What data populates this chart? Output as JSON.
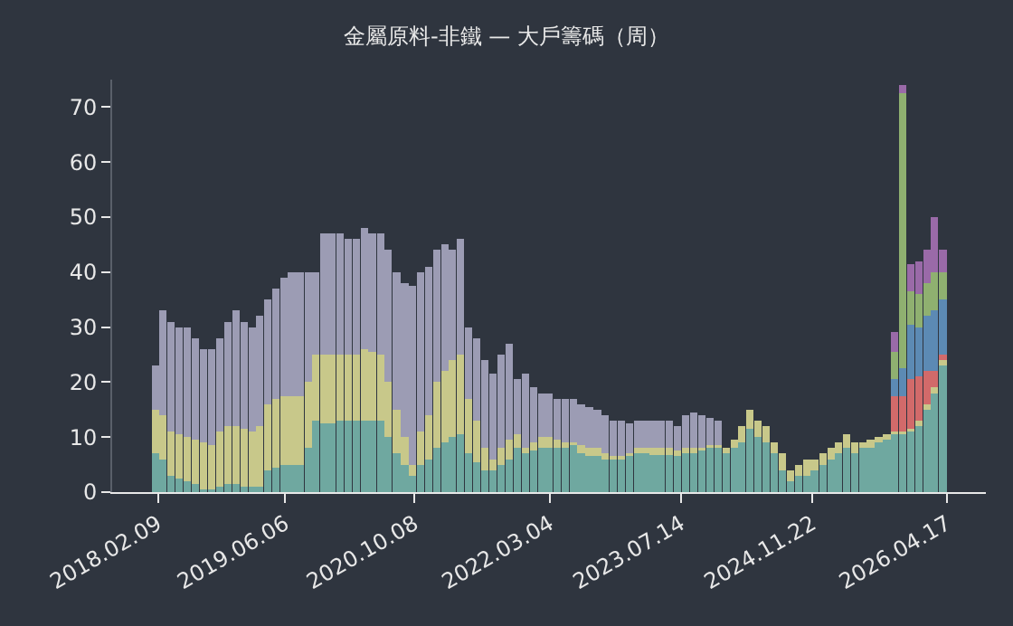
{
  "chart_data": {
    "type": "bar",
    "title": "金屬原料-非鐵 — 大戶籌碼（周）",
    "stacked": true,
    "x": [
      "2018-02",
      "2018-03",
      "2018-04",
      "2018-05",
      "2018-06",
      "2018-07",
      "2018-08",
      "2018-09",
      "2018-10",
      "2018-11",
      "2018-12",
      "2019-01",
      "2019-02",
      "2019-03",
      "2019-04",
      "2019-05",
      "2019-06",
      "2019-07",
      "2019-08",
      "2019-09",
      "2019-10",
      "2019-11",
      "2019-12",
      "2020-01",
      "2020-02",
      "2020-03",
      "2020-04",
      "2020-05",
      "2020-06",
      "2020-07",
      "2020-08",
      "2020-09",
      "2020-10",
      "2020-11",
      "2020-12",
      "2021-01",
      "2021-02",
      "2021-03",
      "2021-04",
      "2021-05",
      "2021-06",
      "2021-07",
      "2021-08",
      "2021-09",
      "2021-10",
      "2021-11",
      "2021-12",
      "2022-01",
      "2022-02",
      "2022-03",
      "2022-04",
      "2022-05",
      "2022-06",
      "2022-07",
      "2022-08",
      "2022-09",
      "2022-10",
      "2022-11",
      "2022-12",
      "2023-01",
      "2023-02",
      "2023-03",
      "2023-04",
      "2023-05",
      "2023-06",
      "2023-07",
      "2023-08",
      "2023-09",
      "2023-10",
      "2023-11",
      "2023-12",
      "2024-01",
      "2024-02",
      "2024-03",
      "2024-04",
      "2024-05",
      "2024-06",
      "2024-07",
      "2024-08",
      "2024-09",
      "2024-10",
      "2024-11",
      "2024-12",
      "2025-01",
      "2025-02",
      "2025-03",
      "2025-04",
      "2025-05",
      "2025-06",
      "2025-07",
      "2025-08",
      "2025-09",
      "2025-10",
      "2025-11",
      "2025-12",
      "2026-01",
      "2026-02",
      "2026-03",
      "2026-04"
    ],
    "xlim": [
      "2017-08-20",
      "2026-09-11"
    ],
    "xticks": [
      {
        "value": "2018-02-09",
        "label": "2018.02.09"
      },
      {
        "value": "2019-06-06",
        "label": "2019.06.06"
      },
      {
        "value": "2020-10-08",
        "label": "2020.10.08"
      },
      {
        "value": "2022-03-04",
        "label": "2022.03.04"
      },
      {
        "value": "2023-07-14",
        "label": "2023.07.14"
      },
      {
        "value": "2024-11-22",
        "label": "2024.11.22"
      },
      {
        "value": "2026-04-17",
        "label": "2026.04.17"
      }
    ],
    "ylim": [
      0,
      75
    ],
    "yticks": [
      0,
      10,
      20,
      30,
      40,
      50,
      60,
      70
    ],
    "series": [
      {
        "color": "#6fa8a0",
        "values": [
          7,
          6,
          3,
          2.5,
          2,
          1.5,
          0.5,
          0.5,
          1,
          1.5,
          1.5,
          1,
          1,
          1,
          4,
          4.5,
          5,
          5,
          5,
          8,
          13,
          12.5,
          12.5,
          13,
          13,
          13,
          13,
          13,
          13,
          10,
          7,
          5,
          3,
          5,
          6,
          8,
          9,
          10,
          10.5,
          7,
          5.5,
          4,
          4,
          5,
          6,
          8,
          7,
          7.5,
          8,
          8,
          8,
          8,
          8.5,
          7,
          6.5,
          6.5,
          6,
          6,
          6,
          6.5,
          7,
          7,
          6.7,
          6.7,
          6.7,
          6.5,
          7,
          7,
          7.5,
          8,
          8,
          7,
          8,
          9,
          11.5,
          10,
          9,
          7,
          4,
          2,
          3,
          3,
          4,
          5,
          6,
          7,
          8,
          7,
          8,
          8,
          9,
          9.5,
          10.5,
          10.5,
          11,
          12,
          15,
          18,
          23
        ]
      },
      {
        "color": "#c8c88a",
        "values": [
          8,
          8,
          8,
          8,
          8,
          8,
          8.5,
          8,
          10,
          10.5,
          10.5,
          10.5,
          10,
          11,
          12,
          12.5,
          12.5,
          12.5,
          12.5,
          12,
          12,
          12.5,
          12.5,
          12,
          12,
          12,
          13,
          12.5,
          12,
          10,
          8,
          5,
          2,
          6,
          8,
          12,
          13,
          14,
          14.5,
          10,
          7.5,
          4,
          2,
          3,
          3.5,
          2.5,
          1,
          1.5,
          2,
          2,
          1.5,
          1,
          0.5,
          1.5,
          1.5,
          1.5,
          1,
          0.5,
          0.5,
          0.5,
          1,
          1,
          1.3,
          1.3,
          1.3,
          1,
          1,
          1,
          0.5,
          0.5,
          0.5,
          1,
          1.5,
          3,
          3.5,
          3,
          3,
          2,
          3,
          2,
          2,
          3,
          2,
          2,
          2,
          2,
          2.5,
          2,
          1,
          1.5,
          1,
          1,
          0.5,
          0.5,
          0.5,
          1,
          1,
          1,
          1
        ]
      },
      {
        "color": "#9c9cb4",
        "values": [
          8,
          19,
          20,
          19.5,
          20,
          18.5,
          17,
          17.5,
          17,
          19,
          21,
          19.5,
          19,
          20,
          19,
          20,
          21.5,
          22.5,
          22.5,
          20,
          15,
          22,
          22,
          22,
          21,
          21,
          22,
          21.5,
          22,
          24,
          25,
          28,
          32.5,
          29,
          27,
          24,
          23,
          20,
          21,
          13,
          15,
          16,
          15.5,
          17,
          17.5,
          10,
          13.5,
          10,
          8,
          8,
          7.5,
          8,
          8,
          7.5,
          7.5,
          7,
          7,
          6.5,
          6.5,
          5.5,
          5,
          5,
          5,
          5,
          5,
          4.5,
          6,
          6.5,
          6,
          5,
          4.5,
          0,
          0,
          0,
          0,
          0,
          0,
          0,
          0,
          0,
          0,
          0,
          0,
          0,
          0,
          0,
          0,
          0,
          0,
          0,
          0,
          0,
          0,
          0,
          0,
          0,
          0,
          0,
          0
        ]
      },
      {
        "color": "#d26a6a",
        "values": [
          0,
          0,
          0,
          0,
          0,
          0,
          0,
          0,
          0,
          0,
          0,
          0,
          0,
          0,
          0,
          0,
          0,
          0,
          0,
          0,
          0,
          0,
          0,
          0,
          0,
          0,
          0,
          0,
          0,
          0,
          0,
          0,
          0,
          0,
          0,
          0,
          0,
          0,
          0,
          0,
          0,
          0,
          0,
          0,
          0,
          0,
          0,
          0,
          0,
          0,
          0,
          0,
          0,
          0,
          0,
          0,
          0,
          0,
          0,
          0,
          0,
          0,
          0,
          0,
          0,
          0,
          0,
          0,
          0,
          0,
          0,
          0,
          0,
          0,
          0,
          0,
          0,
          0,
          0,
          0,
          0,
          0,
          0,
          0,
          0,
          0,
          0,
          0,
          0,
          0,
          0,
          0,
          6.5,
          6.5,
          9,
          8,
          6,
          3,
          1
        ]
      },
      {
        "color": "#5c8ab4",
        "values": [
          0,
          0,
          0,
          0,
          0,
          0,
          0,
          0,
          0,
          0,
          0,
          0,
          0,
          0,
          0,
          0,
          0,
          0,
          0,
          0,
          0,
          0,
          0,
          0,
          0,
          0,
          0,
          0,
          0,
          0,
          0,
          0,
          0,
          0,
          0,
          0,
          0,
          0,
          0,
          0,
          0,
          0,
          0,
          0,
          0,
          0,
          0,
          0,
          0,
          0,
          0,
          0,
          0,
          0,
          0,
          0,
          0,
          0,
          0,
          0,
          0,
          0,
          0,
          0,
          0,
          0,
          0,
          0,
          0,
          0,
          0,
          0,
          0,
          0,
          0,
          0,
          0,
          0,
          0,
          0,
          0,
          0,
          0,
          0,
          0,
          0,
          0,
          0,
          0,
          0,
          0,
          0,
          3,
          5,
          10,
          9,
          10,
          11,
          10
        ]
      },
      {
        "color": "#8fb070",
        "values": [
          0,
          0,
          0,
          0,
          0,
          0,
          0,
          0,
          0,
          0,
          0,
          0,
          0,
          0,
          0,
          0,
          0,
          0,
          0,
          0,
          0,
          0,
          0,
          0,
          0,
          0,
          0,
          0,
          0,
          0,
          0,
          0,
          0,
          0,
          0,
          0,
          0,
          0,
          0,
          0,
          0,
          0,
          0,
          0,
          0,
          0,
          0,
          0,
          0,
          0,
          0,
          0,
          0,
          0,
          0,
          0,
          0,
          0,
          0,
          0,
          0,
          0,
          0,
          0,
          0,
          0,
          0,
          0,
          0,
          0,
          0,
          0,
          0,
          0,
          0,
          0,
          0,
          0,
          0,
          0,
          0,
          0,
          0,
          0,
          0,
          0,
          0,
          0,
          0,
          0,
          0,
          0,
          5,
          50,
          6,
          6,
          6,
          7,
          5
        ]
      },
      {
        "color": "#9a6aa8",
        "values": [
          0,
          0,
          0,
          0,
          0,
          0,
          0,
          0,
          0,
          0,
          0,
          0,
          0,
          0,
          0,
          0,
          0,
          0,
          0,
          0,
          0,
          0,
          0,
          0,
          0,
          0,
          0,
          0,
          0,
          0,
          0,
          0,
          0,
          0,
          0,
          0,
          0,
          0,
          0,
          0,
          0,
          0,
          0,
          0,
          0,
          0,
          0,
          0,
          0,
          0,
          0,
          0,
          0,
          0,
          0,
          0,
          0,
          0,
          0,
          0,
          0,
          0,
          0,
          0,
          0,
          0,
          0,
          0,
          0,
          0,
          0,
          0,
          0,
          0,
          0,
          0,
          0,
          0,
          0,
          0,
          0,
          0,
          0,
          0,
          0,
          0,
          0,
          0,
          0,
          0,
          0,
          0,
          3.6,
          1.5,
          5,
          6,
          6,
          10,
          4
        ]
      }
    ]
  }
}
